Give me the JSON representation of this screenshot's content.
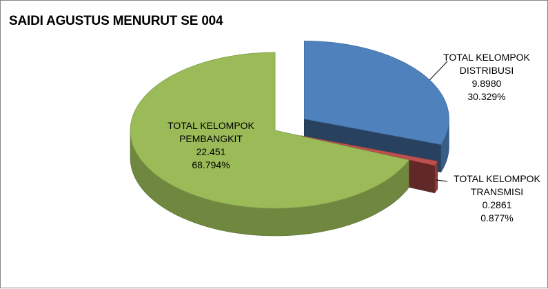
{
  "chart_data": {
    "type": "pie",
    "style": "3d-exploded",
    "title": "SAIDI AGUSTUS MENURUT SE 004",
    "slices": [
      {
        "name": "TOTAL KELOMPOK DISTRIBUSI",
        "name_lines": [
          "TOTAL KELOMPOK",
          "DISTRIBUSI"
        ],
        "value_text": "9.8980",
        "value": 9.898,
        "percent_text": "30.329%",
        "percent": 30.329,
        "color": "#4f81bd"
      },
      {
        "name": "TOTAL KELOMPOK TRANSMISI",
        "name_lines": [
          "TOTAL KELOMPOK",
          "TRANSMISI"
        ],
        "value_text": "0.2861",
        "value": 0.2861,
        "percent_text": "0.877%",
        "percent": 0.877,
        "color": "#c0504d"
      },
      {
        "name": "TOTAL KELOMPOK PEMBANGKIT",
        "name_lines": [
          "TOTAL KELOMPOK",
          "PEMBANGKIT"
        ],
        "value_text": "22.451",
        "value": 22.451,
        "percent_text": "68.794%",
        "percent": 68.794,
        "color": "#9bbb59"
      }
    ],
    "legend": "none",
    "data_labels": "name, value, percent"
  }
}
